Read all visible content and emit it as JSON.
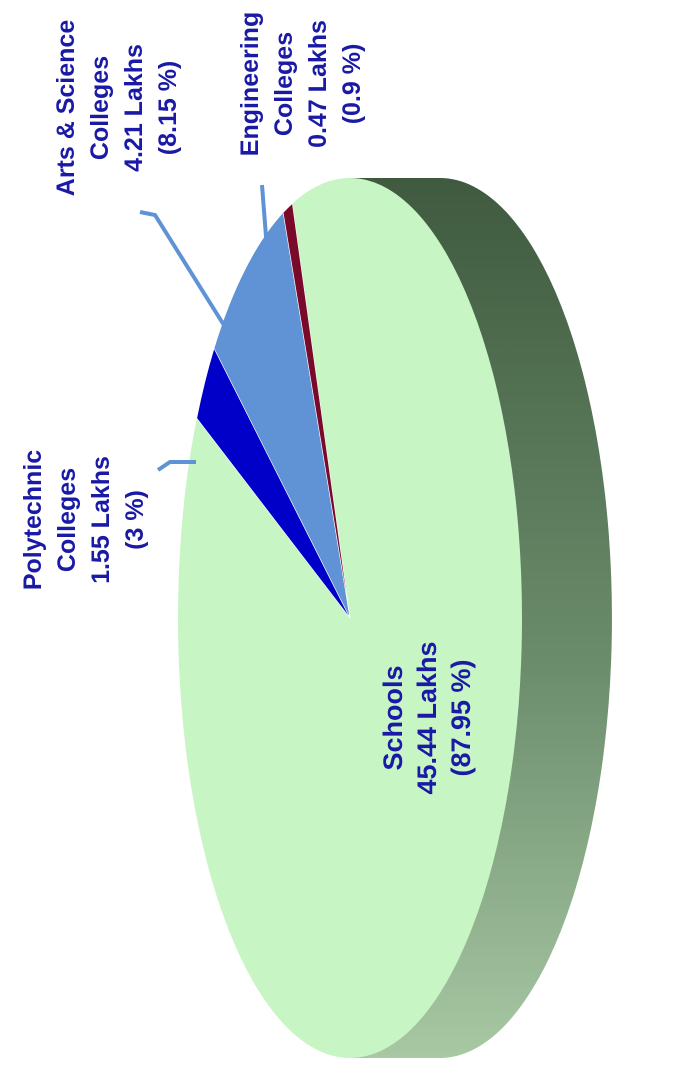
{
  "chart_data": {
    "type": "pie",
    "title": "",
    "units": "Lakhs",
    "slices": [
      {
        "name": "Schools",
        "value": 45.44,
        "percent": 87.95,
        "value_label": "45.44 Lakhs",
        "percent_label": "(87.95 %)",
        "color": "#c7f5c4"
      },
      {
        "name": "Polytechnic Colleges",
        "value": 1.55,
        "percent": 3,
        "value_label": "1.55 Lakhs",
        "percent_label": "(3 %)",
        "color": "#0000c8"
      },
      {
        "name": "Arts & Science Colleges",
        "value": 4.21,
        "percent": 8.15,
        "value_label": "4.21 Lakhs",
        "percent_label": "(8.15 %)",
        "color": "#5f93d6"
      },
      {
        "name": "Engineering Colleges",
        "value": 0.47,
        "percent": 0.9,
        "value_label": "0.47 Lakhs",
        "percent_label": "(0.9 %)",
        "color": "#7a0a2a"
      }
    ],
    "label_lines": {
      "schools": [
        "Schools",
        "45.44 Lakhs",
        "(87.95 %)"
      ],
      "polytechnic": [
        "Polytechnic",
        "Colleges",
        "1.55 Lakhs",
        "(3 %)"
      ],
      "arts": [
        "Arts & Science",
        "Colleges",
        "4.21 Lakhs",
        "(8.15 %)"
      ],
      "engineering": [
        "Engineering",
        "Colleges",
        "0.47 Lakhs",
        "(0.9 %)"
      ]
    },
    "style": "3d-pie",
    "orientation": "rotated-90-ccw",
    "side_color": "#5a7a5a",
    "label_color": "#1a1aa6"
  }
}
